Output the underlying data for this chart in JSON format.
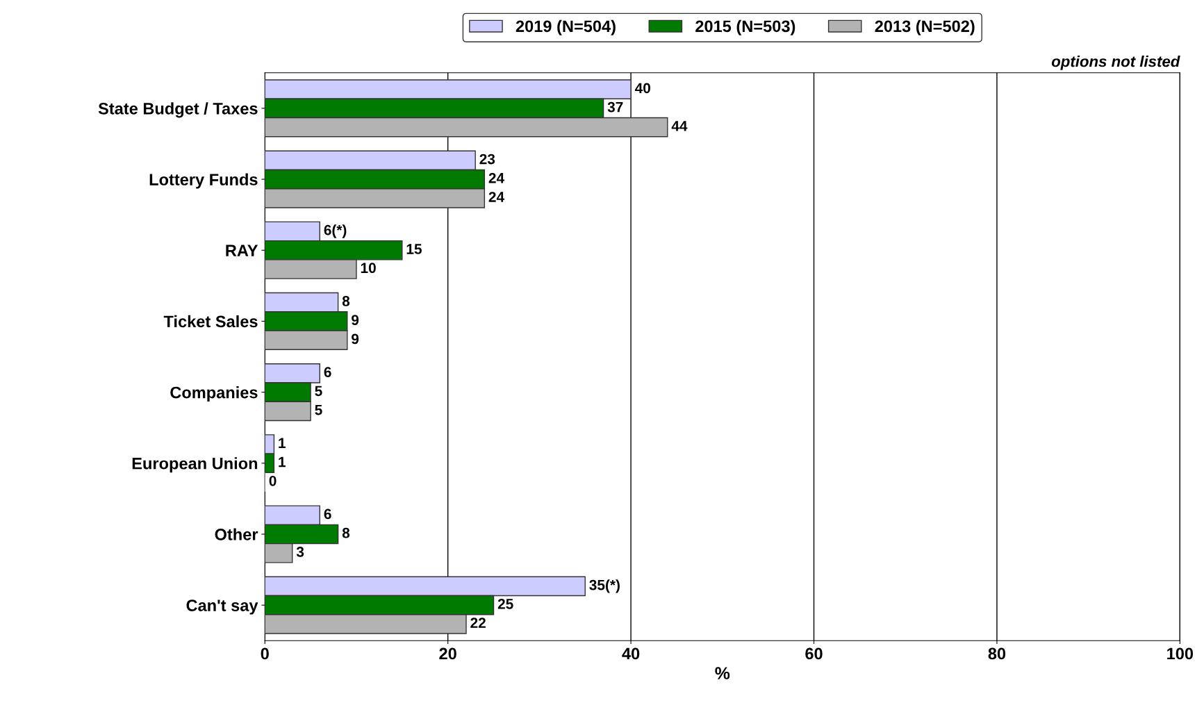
{
  "chart_data": {
    "type": "bar",
    "orientation": "horizontal",
    "xlabel": "%",
    "categories": [
      "State Budget / Taxes",
      "Lottery Funds",
      "RAY",
      "Ticket Sales",
      "Companies",
      "European Union",
      "Other",
      "Can't say"
    ],
    "series": [
      {
        "name": "2019 (N=504)",
        "color": "#ccccff",
        "values": [
          40,
          23,
          6,
          8,
          6,
          1,
          6,
          35
        ],
        "value_labels": [
          "40",
          "23",
          "6(*)",
          "8",
          "6",
          "1",
          "6",
          "35(*)"
        ]
      },
      {
        "name": "2015 (N=503)",
        "color": "#007a00",
        "values": [
          37,
          24,
          15,
          9,
          5,
          1,
          8,
          25
        ],
        "value_labels": [
          "37",
          "24",
          "15",
          "9",
          "5",
          "1",
          "8",
          "25"
        ]
      },
      {
        "name": "2013 (N=502)",
        "color": "#b3b3b3",
        "values": [
          44,
          24,
          10,
          9,
          5,
          0,
          3,
          22
        ],
        "value_labels": [
          "44",
          "24",
          "10",
          "9",
          "5",
          "0",
          "3",
          "22"
        ]
      }
    ],
    "xlim": [
      0,
      100
    ],
    "xticks": [
      0,
      20,
      40,
      60,
      80,
      100
    ],
    "grid": "x",
    "legend": "top",
    "annotations": [
      "options not listed"
    ]
  }
}
